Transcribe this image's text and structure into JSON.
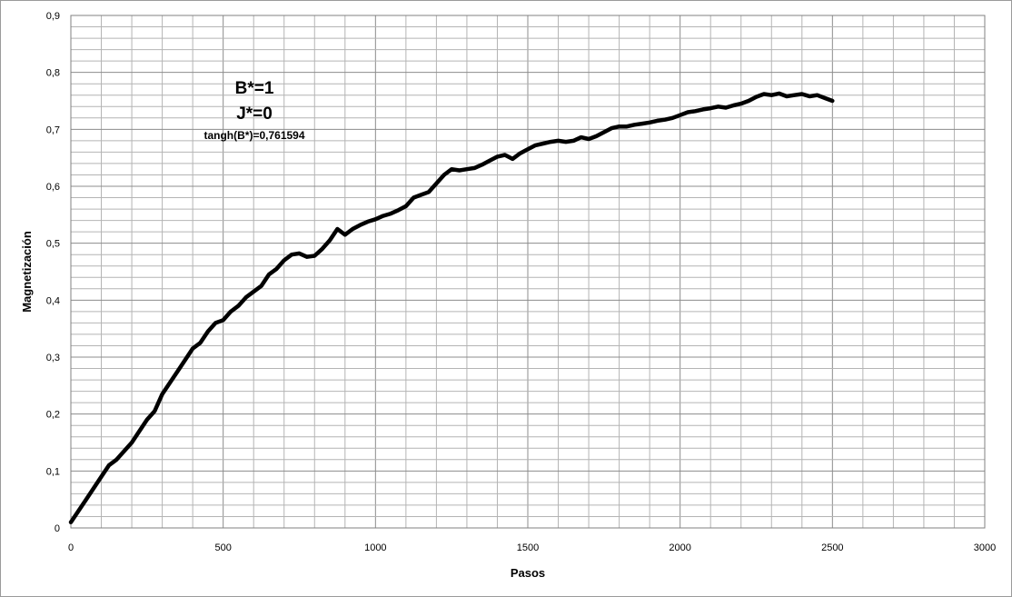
{
  "chart_data": {
    "type": "line",
    "title": "",
    "xlabel": "Pasos",
    "ylabel": "Magnetización",
    "xlim": [
      0,
      3000
    ],
    "ylim": [
      0,
      0.9
    ],
    "x_ticks": [
      "0",
      "500",
      "1000",
      "1500",
      "2000",
      "2500",
      "3000"
    ],
    "y_ticks": [
      "0",
      "0,1",
      "0,2",
      "0,3",
      "0,4",
      "0,5",
      "0,6",
      "0,7",
      "0,8",
      "0,9"
    ],
    "grid": true,
    "legend": "none",
    "annotations": [
      "B*=1",
      "J*=0",
      "tangh(B*)=0,761594"
    ],
    "line_color": "#000000",
    "series": [
      {
        "x": [
          0,
          25,
          50,
          75,
          100,
          125,
          150,
          175,
          200,
          225,
          250,
          275,
          300,
          325,
          350,
          375,
          400,
          425,
          450,
          475,
          500,
          525,
          550,
          575,
          600,
          625,
          650,
          675,
          700,
          725,
          750,
          775,
          800,
          825,
          850,
          875,
          900,
          925,
          950,
          975,
          1000,
          1025,
          1050,
          1075,
          1100,
          1125,
          1150,
          1175,
          1200,
          1225,
          1250,
          1275,
          1300,
          1325,
          1350,
          1375,
          1400,
          1425,
          1450,
          1475,
          1500,
          1525,
          1550,
          1575,
          1600,
          1625,
          1650,
          1675,
          1700,
          1725,
          1750,
          1775,
          1800,
          1825,
          1850,
          1875,
          1900,
          1925,
          1950,
          1975,
          2000,
          2025,
          2050,
          2075,
          2100,
          2125,
          2150,
          2175,
          2200,
          2225,
          2250,
          2275,
          2300,
          2325,
          2350,
          2375,
          2400,
          2425,
          2450,
          2475,
          2500
        ],
        "values": [
          0.01,
          0.03,
          0.05,
          0.07,
          0.09,
          0.11,
          0.12,
          0.135,
          0.15,
          0.17,
          0.19,
          0.205,
          0.235,
          0.255,
          0.275,
          0.295,
          0.315,
          0.325,
          0.345,
          0.36,
          0.365,
          0.38,
          0.39,
          0.405,
          0.415,
          0.425,
          0.445,
          0.455,
          0.47,
          0.48,
          0.482,
          0.476,
          0.478,
          0.49,
          0.505,
          0.525,
          0.515,
          0.525,
          0.532,
          0.538,
          0.542,
          0.548,
          0.552,
          0.558,
          0.565,
          0.58,
          0.585,
          0.59,
          0.605,
          0.62,
          0.63,
          0.628,
          0.63,
          0.632,
          0.638,
          0.645,
          0.652,
          0.655,
          0.648,
          0.658,
          0.665,
          0.672,
          0.675,
          0.678,
          0.68,
          0.678,
          0.68,
          0.686,
          0.683,
          0.688,
          0.695,
          0.702,
          0.705,
          0.705,
          0.708,
          0.71,
          0.712,
          0.715,
          0.717,
          0.72,
          0.725,
          0.73,
          0.732,
          0.735,
          0.737,
          0.74,
          0.738,
          0.742,
          0.745,
          0.75,
          0.757,
          0.762,
          0.76,
          0.763,
          0.758,
          0.76,
          0.762,
          0.758,
          0.76,
          0.755,
          0.75
        ]
      }
    ]
  }
}
